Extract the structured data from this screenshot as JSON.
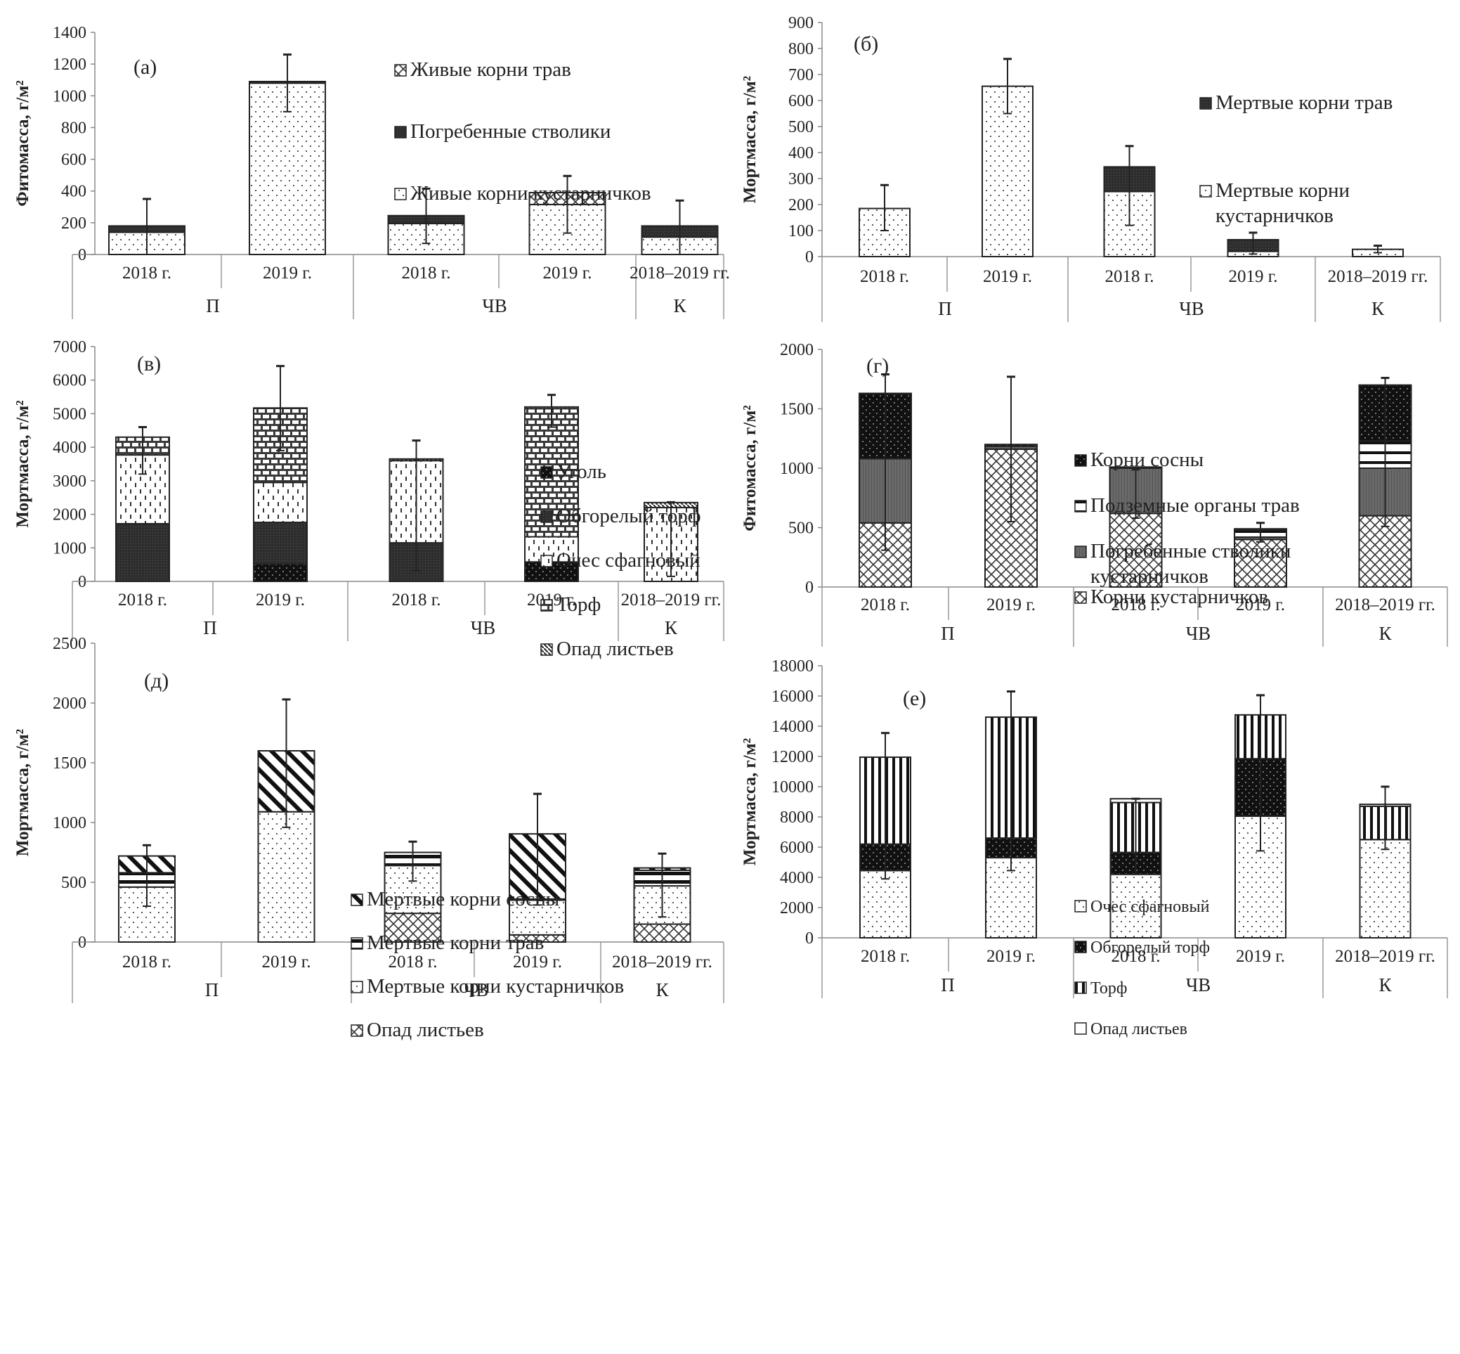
{
  "figure": {
    "category_labels": [
      "2018 г.",
      "2019 г.",
      "2018 г.",
      "2019 г.",
      "2018–2019 гг."
    ],
    "group_labels": [
      "П",
      "ЧВ",
      "К"
    ]
  },
  "chart_data": [
    {
      "id": "a",
      "type": "bar",
      "stacked": true,
      "panel_tag": "(а)",
      "ylabel": "Фитомасса, г/м²",
      "ylim": [
        0,
        1400
      ],
      "yticks": [
        0,
        200,
        400,
        600,
        800,
        1000,
        1200,
        1400
      ],
      "categories": [
        "2018 г.",
        "2019 г.",
        "2018 г.",
        "2019 г.",
        "2018–2019 гг."
      ],
      "groups": [
        {
          "label": "П",
          "span": 2
        },
        {
          "label": "ЧВ",
          "span": 2
        },
        {
          "label": "К",
          "span": 1
        }
      ],
      "legend_position": "top-right",
      "series": [
        {
          "name": "Живые корни кустарничков",
          "pattern": "dots",
          "values": [
            140,
            1080,
            195,
            315,
            110
          ],
          "error_low": [
            0,
            900,
            70,
            135,
            0
          ],
          "error_high": [
            330,
            1090,
            375,
            390,
            300
          ]
        },
        {
          "name": "Погребенные стволики",
          "pattern": "dark",
          "values": [
            40,
            10,
            50,
            0,
            70
          ],
          "error_low": [
            null,
            null,
            10,
            null,
            null
          ],
          "error_high": [
            350,
            1260,
            415,
            495,
            340
          ]
        },
        {
          "name": "Живые корни трав",
          "pattern": "cross",
          "values": [
            0,
            0,
            0,
            75,
            0
          ]
        }
      ],
      "legend_order": [
        "Живые корни трав",
        "Погребенные стволики",
        "Живые корни кустарничков"
      ],
      "errors_total_high": [
        350,
        1260,
        415,
        495,
        340
      ]
    },
    {
      "id": "b",
      "type": "bar",
      "stacked": true,
      "panel_tag": "(б)",
      "ylabel": "Мортмасса, г/м²",
      "ylim": [
        0,
        900
      ],
      "yticks": [
        0,
        100,
        200,
        300,
        400,
        500,
        600,
        700,
        800,
        900
      ],
      "categories": [
        "2018 г.",
        "2019 г.",
        "2018 г.",
        "2019 г.",
        "2018–2019 гг."
      ],
      "groups": [
        {
          "label": "П",
          "span": 2
        },
        {
          "label": "ЧВ",
          "span": 2
        },
        {
          "label": "К",
          "span": 1
        }
      ],
      "legend_position": "right",
      "series": [
        {
          "name": "Мертвые корни кустарничков",
          "pattern": "dots",
          "values": [
            185,
            655,
            250,
            20,
            28
          ]
        },
        {
          "name": "Мертвые корни трав",
          "pattern": "dark",
          "values": [
            0,
            0,
            95,
            45,
            0
          ]
        }
      ],
      "legend_order": [
        "Мертвые корни трав",
        "Мертвые корни кустарничков"
      ],
      "errors_total_high": [
        275,
        760,
        425,
        92,
        42
      ],
      "errors_total_low": [
        100,
        550,
        120,
        10,
        15
      ]
    },
    {
      "id": "v",
      "type": "bar",
      "stacked": true,
      "panel_tag": "(в)",
      "ylabel": "Мортмасса, г/м²",
      "ylim": [
        0,
        7000
      ],
      "yticks": [
        0,
        1000,
        2000,
        3000,
        4000,
        5000,
        6000,
        7000
      ],
      "categories": [
        "2018 г.",
        "2019 г.",
        "2018 г.",
        "2019 г.",
        "2018–2019 гг."
      ],
      "groups": [
        {
          "label": "П",
          "span": 2
        },
        {
          "label": "ЧВ",
          "span": 2
        },
        {
          "label": "К",
          "span": 1
        }
      ],
      "legend_position": "top-right",
      "series": [
        {
          "name": "Уголь",
          "pattern": "black-dots",
          "values": [
            0,
            520,
            0,
            580,
            0
          ]
        },
        {
          "name": "Обгорелый торф",
          "pattern": "dark",
          "values": [
            1720,
            1240,
            1150,
            0,
            0
          ]
        },
        {
          "name": "Очес сфагновый",
          "pattern": "dashes",
          "values": [
            2050,
            1190,
            2450,
            750,
            2200
          ]
        },
        {
          "name": "Торф",
          "pattern": "brick",
          "values": [
            530,
            2220,
            0,
            3820,
            0
          ]
        },
        {
          "name": "Опад листьев",
          "pattern": "diag-fine",
          "values": [
            0,
            0,
            50,
            50,
            150
          ]
        }
      ],
      "legend_order": [
        "Уголь",
        "Обгорелый торф",
        "Очес сфагновый",
        "Торф",
        "Опад листьев"
      ],
      "errors_total_high": [
        4600,
        6420,
        4200,
        5560,
        2360
      ],
      "errors_total_low": [
        3200,
        3900,
        320,
        4600,
        150
      ]
    },
    {
      "id": "g",
      "type": "bar",
      "stacked": true,
      "panel_tag": "(г)",
      "ylabel": "Фитомасса, г/м²",
      "ylim": [
        0,
        2000
      ],
      "yticks": [
        0,
        500,
        1000,
        1500,
        2000
      ],
      "categories": [
        "2018 г.",
        "2019 г.",
        "2018 г.",
        "2019 г.",
        "2018–2019 гг."
      ],
      "groups": [
        {
          "label": "П",
          "span": 2
        },
        {
          "label": "ЧВ",
          "span": 2
        },
        {
          "label": "К",
          "span": 1
        }
      ],
      "legend_position": "top-center",
      "series": [
        {
          "name": "Корни кустарничков",
          "pattern": "cross",
          "values": [
            540,
            1160,
            620,
            400,
            600
          ]
        },
        {
          "name": "Погребенные стволики кустарничков",
          "pattern": "gray-vlines",
          "values": [
            540,
            25,
            380,
            20,
            400
          ]
        },
        {
          "name": "Подземные органы трав",
          "pattern": "hlines",
          "values": [
            0,
            0,
            0,
            60,
            230
          ]
        },
        {
          "name": "Корни сосны",
          "pattern": "black-dots",
          "values": [
            550,
            15,
            10,
            10,
            470
          ]
        }
      ],
      "legend_order": [
        "Корни сосны",
        "Подземные органы трав",
        "Погребенные стволики кустарничков",
        "Корни кустарничков"
      ],
      "errors_total_high": [
        1790,
        1770,
        990,
        540,
        1760
      ],
      "errors_total_low": [
        310,
        550,
        580,
        380,
        510
      ]
    },
    {
      "id": "d",
      "type": "bar",
      "stacked": true,
      "panel_tag": "(д)",
      "ylabel": "Мортмасса, г/м²",
      "ylim": [
        0,
        2500
      ],
      "yticks": [
        0,
        500,
        1000,
        1500,
        2000,
        2500
      ],
      "categories": [
        "2018 г.",
        "2019 г.",
        "2018 г.",
        "2019 г.",
        "2018–2019 гг."
      ],
      "groups": [
        {
          "label": "П",
          "span": 2
        },
        {
          "label": "ЧВ",
          "span": 2
        },
        {
          "label": "К",
          "span": 1
        }
      ],
      "legend_position": "top-right",
      "series": [
        {
          "name": "Опад листьев",
          "pattern": "cross",
          "values": [
            0,
            0,
            240,
            60,
            150
          ]
        },
        {
          "name": "Мертвые корни кустарничков",
          "pattern": "dots",
          "values": [
            460,
            1090,
            400,
            290,
            320
          ]
        },
        {
          "name": "Мертвые корни трав",
          "pattern": "hlines-bold",
          "values": [
            120,
            0,
            110,
            10,
            130
          ]
        },
        {
          "name": "Мертвые корни сосны",
          "pattern": "diag-wide",
          "values": [
            140,
            510,
            0,
            545,
            20
          ]
        }
      ],
      "legend_order": [
        "Мертвые корни сосны",
        "Мертвые корни трав",
        "Мертвые корни кустарничков",
        "Опад листьев"
      ],
      "errors_total_high": [
        810,
        2030,
        840,
        1240,
        740
      ],
      "errors_total_low": [
        300,
        960,
        510,
        310,
        210
      ]
    },
    {
      "id": "e",
      "type": "bar",
      "stacked": true,
      "panel_tag": "(е)",
      "ylabel": "Мортмасса, г/м²",
      "ylim": [
        0,
        18000
      ],
      "yticks": [
        0,
        2000,
        4000,
        6000,
        8000,
        10000,
        12000,
        14000,
        16000,
        18000
      ],
      "categories": [
        "2018 г.",
        "2019 г.",
        "2018 г.",
        "2019 г.",
        "2018–2019 гг."
      ],
      "groups": [
        {
          "label": "П",
          "span": 2
        },
        {
          "label": "ЧВ",
          "span": 2
        },
        {
          "label": "К",
          "span": 1
        }
      ],
      "legend_position": "top-center",
      "series": [
        {
          "name": "Очес сфагновый",
          "pattern": "dots",
          "values": [
            4450,
            5300,
            4200,
            8050,
            6500
          ]
        },
        {
          "name": "Обгорелый торф",
          "pattern": "black-dots",
          "values": [
            1750,
            1300,
            1450,
            3800,
            0
          ]
        },
        {
          "name": "Торф",
          "pattern": "vlines",
          "values": [
            5750,
            8000,
            3300,
            2900,
            2200
          ]
        },
        {
          "name": "Опад листьев",
          "pattern": "white",
          "values": [
            0,
            0,
            250,
            0,
            130
          ]
        }
      ],
      "legend_order": [
        "Очес сфагновый",
        "Обгорелый торф",
        "Торф",
        "Опад листьев"
      ],
      "errors_total_high": [
        13550,
        16300,
        9200,
        16050,
        10000
      ],
      "errors_total_low": [
        3900,
        4450,
        4200,
        5750,
        5850
      ]
    }
  ]
}
